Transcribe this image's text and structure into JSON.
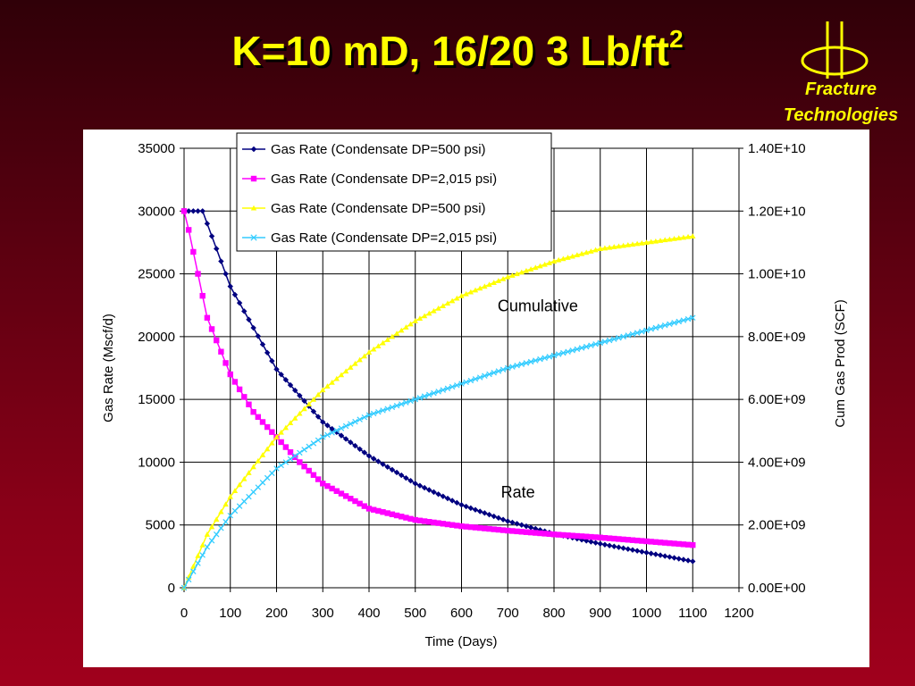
{
  "slide": {
    "title_main": "K=10 mD, 16/20 3 Lb/ft",
    "title_sup": "2",
    "logo": {
      "icon": "fracture-technologies-logo-icon",
      "line1": "Fracture",
      "line2": "Technologies"
    },
    "colors": {
      "title": "#ffff00",
      "background": "#7a0014"
    }
  },
  "chart_data": {
    "type": "scatter",
    "xlabel": "Time (Days)",
    "ylabel": "Gas Rate (Mscf/d)",
    "y2label": "Cum Gas Prod (SCF)",
    "xlim": [
      0,
      1200
    ],
    "ylim": [
      0,
      35000
    ],
    "y2lim": [
      0,
      14000000000
    ],
    "x_ticks": [
      "0",
      "100",
      "200",
      "300",
      "400",
      "500",
      "600",
      "700",
      "800",
      "900",
      "1000",
      "1100",
      "1200"
    ],
    "y_ticks": [
      "0",
      "5000",
      "10000",
      "15000",
      "20000",
      "25000",
      "30000",
      "35000"
    ],
    "y2_ticks": [
      "0.00E+00",
      "2.00E+09",
      "4.00E+09",
      "6.00E+09",
      "8.00E+09",
      "1.00E+10",
      "1.20E+10",
      "1.40E+10"
    ],
    "grid": true,
    "legend_position": "top-left",
    "annotations": [
      {
        "text": "Cumulative",
        "x": 765,
        "y": 22000
      },
      {
        "text": "Rate",
        "x": 722,
        "y": 7200
      }
    ],
    "series": [
      {
        "name": "Gas Rate (Condensate DP=500 psi)",
        "axis": "left",
        "marker": "diamond",
        "color": "#000080",
        "x": [
          0,
          20,
          40,
          100,
          200,
          300,
          400,
          500,
          600,
          700,
          800,
          900,
          1000,
          1100
        ],
        "y": [
          30000,
          30000,
          30000,
          24000,
          17400,
          13200,
          10500,
          8300,
          6600,
          5300,
          4300,
          3500,
          2800,
          2100
        ]
      },
      {
        "name": "Gas Rate (Condensate DP=2,015 psi)",
        "axis": "left",
        "marker": "square",
        "color": "#ff00ff",
        "x": [
          0,
          10,
          50,
          100,
          150,
          200,
          250,
          300,
          400,
          500,
          600,
          700,
          800,
          900,
          1000,
          1100
        ],
        "y": [
          30000,
          28500,
          21500,
          17000,
          14000,
          12000,
          10000,
          8300,
          6300,
          5400,
          4900,
          4550,
          4250,
          4000,
          3700,
          3400
        ]
      },
      {
        "name": "Gas Rate (Condensate DP=500 psi)",
        "axis": "right",
        "marker": "triangle",
        "color": "#ffff00",
        "x": [
          0,
          50,
          100,
          200,
          300,
          400,
          500,
          600,
          700,
          800,
          900,
          1000,
          1100
        ],
        "y": [
          0,
          1700000000,
          2900000000,
          4800000000,
          6300000000,
          7500000000,
          8500000000,
          9300000000,
          9900000000,
          10400000000,
          10800000000,
          11000000000,
          11200000000
        ]
      },
      {
        "name": "Gas Rate (Condensate DP=2,015 psi)",
        "axis": "right",
        "marker": "cross",
        "color": "#33ccff",
        "x": [
          0,
          50,
          100,
          200,
          300,
          400,
          500,
          600,
          700,
          800,
          900,
          1000,
          1100
        ],
        "y": [
          0,
          1300000000,
          2300000000,
          3800000000,
          4800000000,
          5500000000,
          6000000000,
          6500000000,
          7000000000,
          7400000000,
          7800000000,
          8200000000,
          8600000000
        ]
      }
    ]
  }
}
